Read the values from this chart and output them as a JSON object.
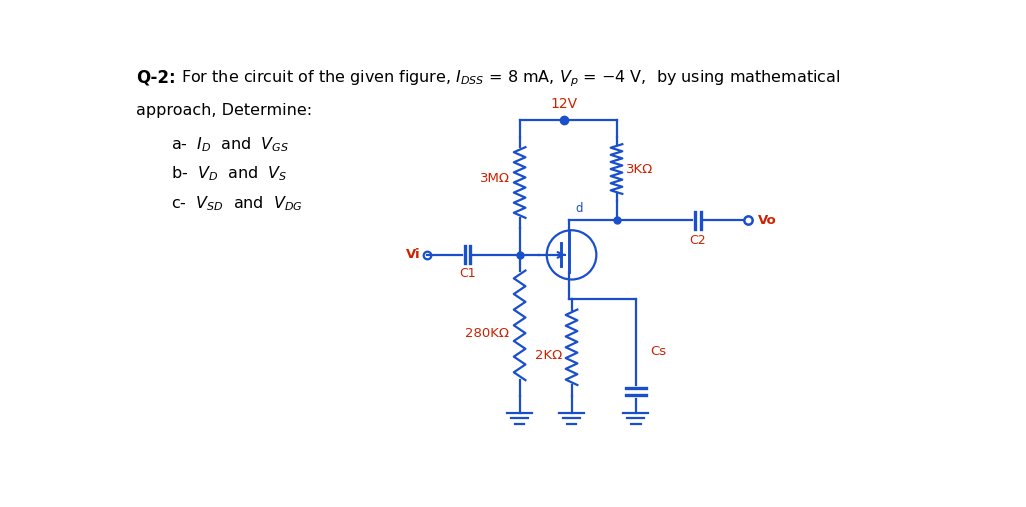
{
  "bg_color": "#ffffff",
  "text_color_black": "#000000",
  "text_color_red": "#cc2200",
  "circuit_color": "#1a4fcc",
  "fig_width": 10.26,
  "fig_height": 5.07,
  "label_12V": "12V",
  "label_3MO": "3MΩ",
  "label_3KO": "3KΩ",
  "label_280KO": "280KΩ",
  "label_2KO": "2KΩ",
  "label_Vi": "Vi",
  "label_C1": "C1",
  "label_C2": "C2",
  "label_Cs": "Cs",
  "label_Vo": "Vo",
  "label_d": "d"
}
